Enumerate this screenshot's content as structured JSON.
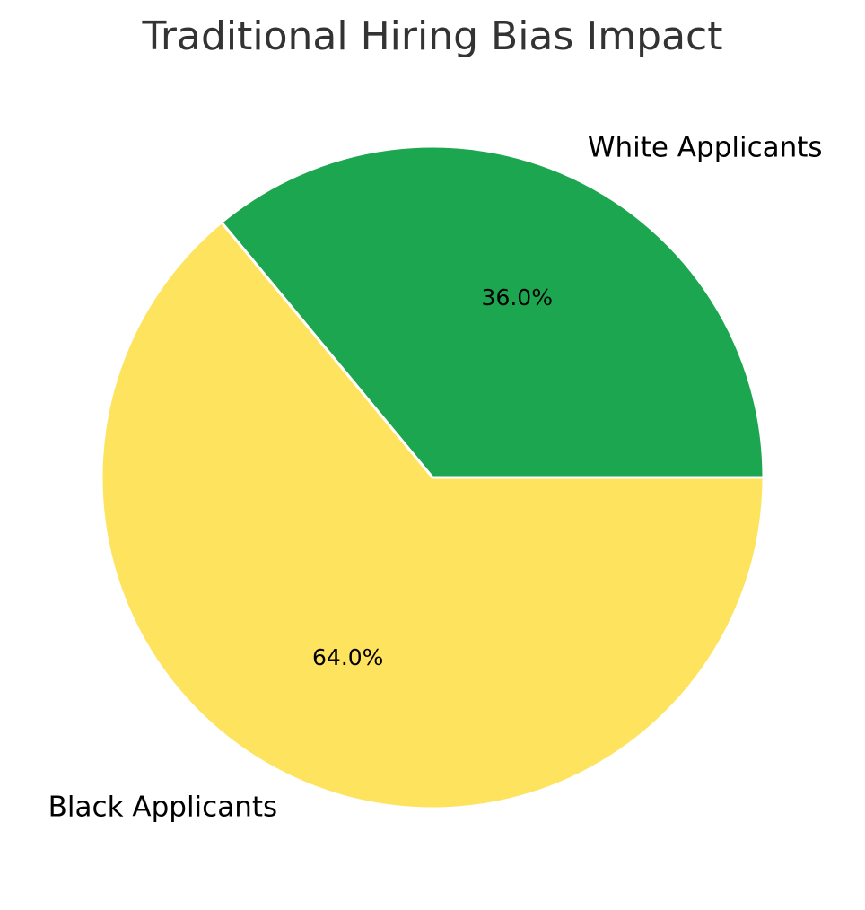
{
  "chart_data": {
    "type": "pie",
    "title": "Traditional Hiring Bias Impact",
    "labels": [
      "White Applicants",
      "Black Applicants"
    ],
    "values": [
      36.0,
      64.0
    ],
    "percent_labels": [
      "36.0%",
      "64.0%"
    ],
    "colors": [
      "#1ca64f",
      "#fee35e"
    ],
    "edge_color": "#ffffff",
    "start_angle_deg": 0,
    "direction": "counterclockwise",
    "legend": "none"
  }
}
